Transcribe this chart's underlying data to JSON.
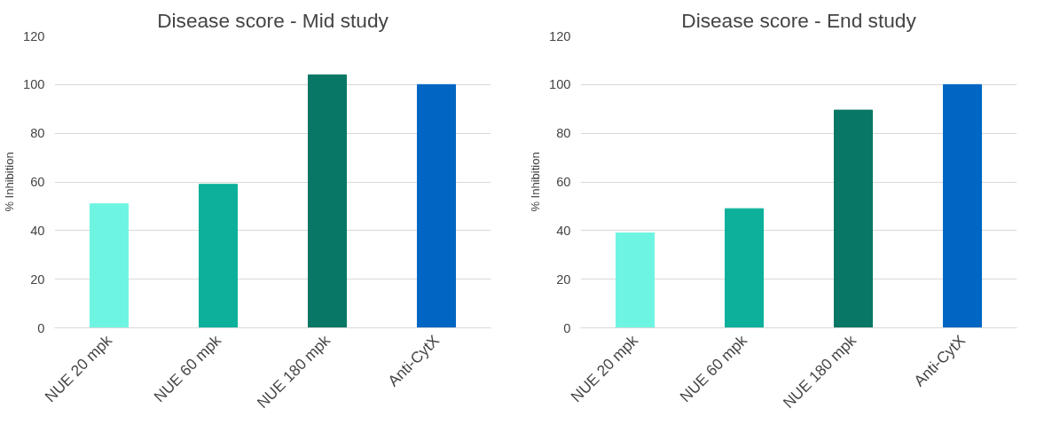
{
  "chart_data": [
    {
      "type": "bar",
      "title": "Disease score - Mid study",
      "ylabel": "% Inhibition",
      "categories": [
        "NUE 20 mpk",
        "NUE 60 mpk",
        "NUE 180 mpk",
        "Anti-CytX"
      ],
      "values": [
        51,
        59,
        104,
        100
      ],
      "colors": [
        "#6ef5e1",
        "#0db09a",
        "#087765",
        "#0066c3"
      ],
      "ylim": [
        0,
        120
      ],
      "yticks": [
        0,
        20,
        40,
        60,
        80,
        100,
        120
      ],
      "grid": "y"
    },
    {
      "type": "bar",
      "title": "Disease score - End study",
      "ylabel": "% Inhibition",
      "categories": [
        "NUE 20 mpk",
        "NUE 60 mpk",
        "NUE 180 mpk",
        "Anti-CytX"
      ],
      "values": [
        39,
        49,
        89.5,
        100
      ],
      "colors": [
        "#6ef5e1",
        "#0db09a",
        "#087765",
        "#0066c3"
      ],
      "ylim": [
        0,
        120
      ],
      "yticks": [
        0,
        20,
        40,
        60,
        80,
        100,
        120
      ],
      "grid": "y"
    }
  ]
}
